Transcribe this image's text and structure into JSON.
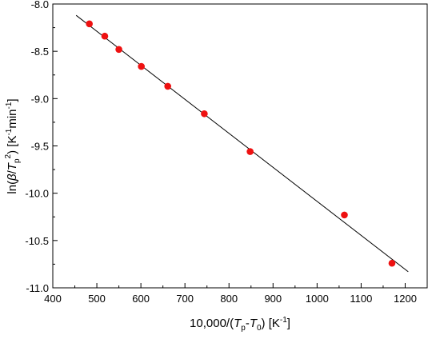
{
  "chart_data": {
    "type": "scatter",
    "title": "",
    "xlabel": {
      "prefix": "10,000/(",
      "var1": "T",
      "sub1": "p",
      "minus": "-",
      "var2": "T",
      "sub2": "0",
      "close": ")",
      "unit_open": " [K",
      "unit_sup": "-1",
      "unit_close": "]"
    },
    "ylabel": {
      "prefix": "ln(",
      "beta": "β",
      "slash": "/",
      "var": "T",
      "sub": "p",
      "sup": "2",
      "close": ")",
      "unit_open": " [K",
      "unit_sup1": "-1",
      "unit_mid": "min",
      "unit_sup2": "-1",
      "unit_close": "]"
    },
    "xlim": [
      400,
      1250
    ],
    "ylim": [
      -11.0,
      -8.0
    ],
    "xticks": [
      400,
      500,
      600,
      700,
      800,
      900,
      1000,
      1100,
      1200
    ],
    "xtick_labels": [
      "400",
      "500",
      "600",
      "700",
      "800",
      "900",
      "1000",
      "1100",
      "1200"
    ],
    "yticks": [
      -11.0,
      -10.5,
      -10.0,
      -9.5,
      -9.0,
      -8.5,
      -8.0
    ],
    "ytick_labels": [
      "-11.0",
      "-10.5",
      "-10.0",
      "-9.5",
      "-9.0",
      "-8.5",
      "-8.0"
    ],
    "grid": false,
    "legend": "none",
    "series": [
      {
        "marker_color": "#ee1111",
        "x": [
          483,
          518,
          550,
          601,
          661,
          744,
          848,
          1062,
          1170
        ],
        "y": [
          -8.21,
          -8.34,
          -8.48,
          -8.66,
          -8.87,
          -9.16,
          -9.56,
          -10.23,
          -10.74
        ]
      }
    ],
    "fit_line": {
      "color": "#000000",
      "x": [
        453,
        1207
      ],
      "y": [
        -8.12,
        -10.83
      ]
    }
  }
}
